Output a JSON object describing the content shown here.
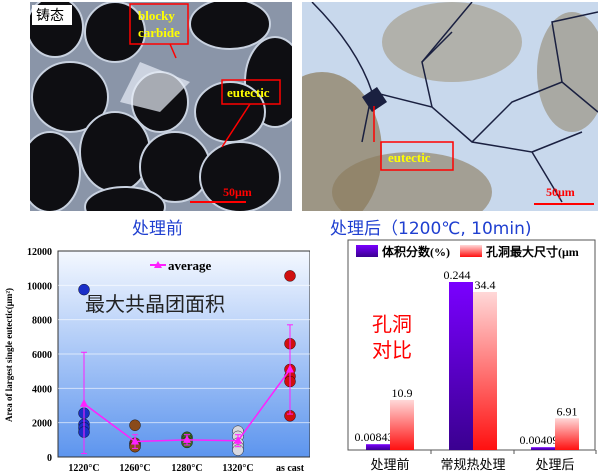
{
  "micrographs": [
    {
      "tag": "铸态",
      "labels": [
        "blocky carbide",
        "eutectic"
      ],
      "scale": "50μm",
      "caption": "处理前"
    },
    {
      "labels": [
        "eutectic"
      ],
      "scale": "50μm",
      "caption": "处理后（1200℃, 10min)"
    }
  ],
  "chart_data": [
    {
      "type": "scatter",
      "title": "最大共晶团面积",
      "ylabel": "Area of largest single eutectic(μm²)",
      "ylim": [
        0,
        12000
      ],
      "yticks": [
        "0",
        "2000",
        "4000",
        "6000",
        "8000",
        "10000",
        "12000"
      ],
      "categories": [
        "1220°C",
        "1260°C",
        "1280°C",
        "1320°C",
        "as cast"
      ],
      "points": [
        [
          9750,
          2550,
          1900,
          1700,
          1450
        ],
        [
          1850,
          800,
          700,
          600
        ],
        [
          1150,
          1000,
          850
        ],
        [
          1500,
          1200,
          800,
          600,
          400
        ],
        [
          10550,
          6600,
          5100,
          4700,
          4400,
          2400
        ]
      ],
      "point_colors": [
        "#1a2fc8",
        "#8a4a1a",
        "#3c6a20",
        "#d8d8e0",
        "#d01010"
      ],
      "series": [
        {
          "name": "average",
          "values": [
            3100,
            900,
            1000,
            950,
            5100
          ],
          "err_low": [
            200,
            500,
            700,
            600,
            2500
          ],
          "err_high": [
            6100,
            1300,
            1300,
            1300,
            7700
          ],
          "color": "#ff20ff"
        }
      ],
      "grid": true,
      "legend": "top-center"
    },
    {
      "type": "bar",
      "title": "孔洞对比",
      "categories": [
        "处理前",
        "常规热处理",
        "处理后"
      ],
      "series": [
        {
          "name": "体积分数(%)",
          "values": [
            0.00843,
            0.244,
            0.00409
          ],
          "labels": [
            "0.00843",
            "0.244",
            "0.00409"
          ],
          "color": "#6a00e0"
        },
        {
          "name": "孔洞最大尺寸(μm",
          "values": [
            10.9,
            34.4,
            6.91
          ],
          "labels": [
            "10.9",
            "34.4",
            "6.91"
          ],
          "color": "#ff3030"
        }
      ],
      "legend": "top"
    }
  ]
}
